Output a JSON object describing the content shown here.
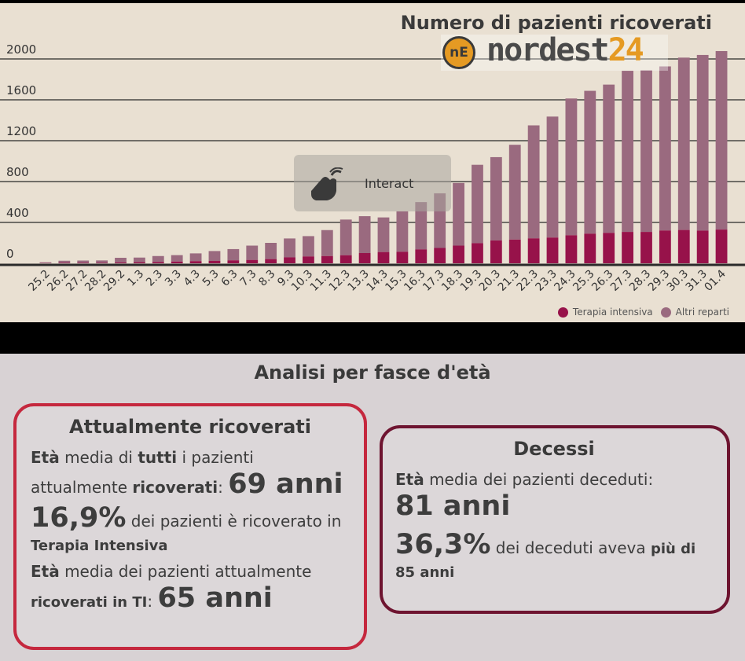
{
  "chart_data": {
    "type": "bar",
    "stacked": true,
    "title": "Numero di pazienti ricoverati",
    "categories": [
      "25.2",
      "26.2",
      "27.2",
      "28.2",
      "29.2",
      "1.3",
      "2.3",
      "3.3",
      "4.3",
      "5.3",
      "6.3",
      "7.3",
      "8.3",
      "9.3",
      "10.3",
      "11.3",
      "12.3",
      "13.3",
      "14.3",
      "15.3",
      "16.3",
      "17.3",
      "18.3",
      "19.3",
      "20.3",
      "21.3",
      "22.3",
      "23.3",
      "24.3",
      "25.3",
      "26.3",
      "27.3",
      "28.3",
      "29.3",
      "30.3",
      "31.3",
      "01.4"
    ],
    "series": [
      {
        "name": "Terapia intensiva",
        "color": "#97124a",
        "values": [
          2,
          5,
          5,
          5,
          9,
          11,
          13,
          17,
          21,
          23,
          29,
          33,
          41,
          58,
          67,
          71,
          79,
          100,
          110,
          113,
          136,
          150,
          173,
          197,
          224,
          232,
          244,
          252,
          274,
          290,
          298,
          307,
          307,
          321,
          326,
          320,
          330
        ]
      },
      {
        "name": "Altri reparti",
        "color": "#9a6a7f",
        "values": [
          8,
          20,
          22,
          23,
          45,
          45,
          58,
          63,
          76,
          97,
          110,
          140,
          159,
          185,
          199,
          254,
          349,
          361,
          339,
          395,
          463,
          535,
          613,
          767,
          815,
          928,
          1106,
          1184,
          1339,
          1398,
          1451,
          1577,
          1582,
          1606,
          1687,
          1719,
          1747
        ]
      }
    ],
    "y_ticks": [
      0,
      400,
      800,
      1200,
      1600,
      2000
    ],
    "ylim": [
      0,
      2100
    ],
    "grid": true,
    "legend_position": "bottom-right"
  },
  "logo": {
    "circle": "nE",
    "text_a": "nordest",
    "text_b": "24"
  },
  "overlay": {
    "label": "Interact",
    "icon": "hand-pointer-icon"
  },
  "analysis": {
    "title": "Analisi per fasce d'età",
    "left": {
      "title": "Attualmente ricoverati",
      "p1": {
        "t1": "Età",
        "t2": " media di ",
        "t3": "tutti",
        "t4": " i pazienti attualmente ",
        "t5": "ricoverati",
        "t6": ": ",
        "big": "69 anni"
      },
      "p2": {
        "big": "16,9%",
        "t1": " dei pazienti è ricoverato in ",
        "t2": "Terapia Intensiva"
      },
      "p3": {
        "t1": "Età",
        "t2": " media dei pazienti attualmente ",
        "t3": "ricoverati in TI",
        "t4": ": ",
        "big": "65 anni"
      }
    },
    "right": {
      "title": "Decessi",
      "p1": {
        "t1": "Età",
        "t2": " media dei pazienti deceduti:",
        "big": "81 anni"
      },
      "p2": {
        "big": "36,3%",
        "t1": " dei deceduti aveva ",
        "t2": "più di 85 anni"
      }
    }
  },
  "colors": {
    "left_border": "#c5283e",
    "right_border": "#6e1430"
  }
}
